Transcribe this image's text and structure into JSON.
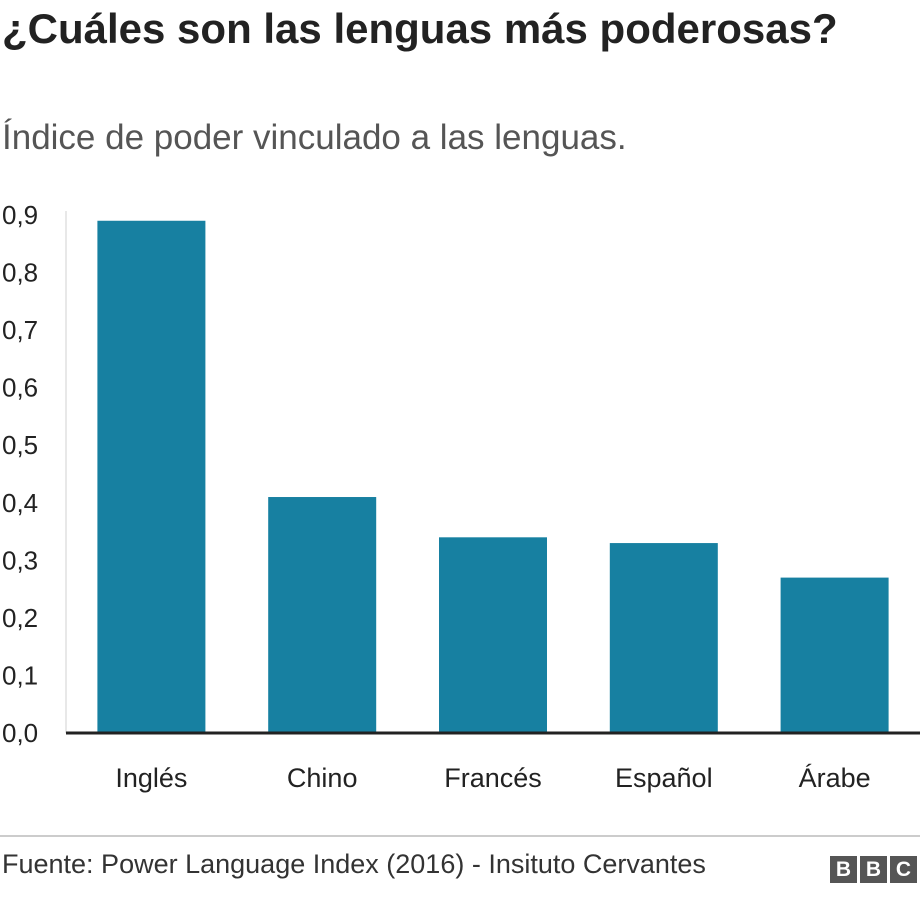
{
  "header": {
    "title": "¿Cuáles son las lenguas más poderosas?",
    "subtitle": "Índice de poder vinculado a las lenguas."
  },
  "chart_data": {
    "type": "bar",
    "categories": [
      "Inglés",
      "Chino",
      "Francés",
      "Español",
      "Árabe"
    ],
    "values": [
      0.89,
      0.41,
      0.34,
      0.33,
      0.27
    ],
    "ylim": [
      0,
      0.9
    ],
    "yticks": [
      "0,0",
      "0,1",
      "0,2",
      "0,3",
      "0,4",
      "0,5",
      "0,6",
      "0,7",
      "0,8",
      "0,9"
    ],
    "bar_color": "#1780a1",
    "grid": false,
    "legend": "none"
  },
  "footer": {
    "source": "Fuente: Power Language Index (2016) - Insituto Cervantes",
    "logo_letters": [
      "B",
      "B",
      "C"
    ]
  }
}
